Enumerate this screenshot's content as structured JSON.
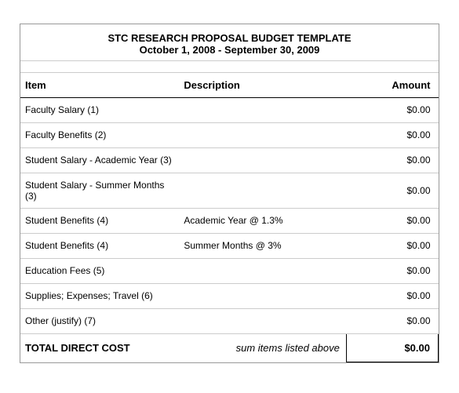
{
  "title": {
    "line1": "STC RESEARCH PROPOSAL BUDGET TEMPLATE",
    "line2": "October 1, 2008 - September 30, 2009"
  },
  "headers": {
    "item": "Item",
    "description": "Description",
    "amount": "Amount"
  },
  "rows": [
    {
      "item": "Faculty Salary (1)",
      "description": "",
      "amount": "$0.00"
    },
    {
      "item": "Faculty Benefits  (2)",
      "description": "",
      "amount": "$0.00"
    },
    {
      "item": "Student Salary - Academic Year  (3)",
      "description": "",
      "amount": "$0.00"
    },
    {
      "item": "Student Salary - Summer Months  (3)",
      "description": "",
      "amount": "$0.00"
    },
    {
      "item": "Student Benefits (4)",
      "description": "Academic Year @ 1.3%",
      "amount": "$0.00"
    },
    {
      "item": "Student Benefits (4)",
      "description": "Summer Months @ 3%",
      "amount": "$0.00"
    },
    {
      "item": "Education Fees (5)",
      "description": "",
      "amount": "$0.00"
    },
    {
      "item": "Supplies; Expenses; Travel (6)",
      "description": "",
      "amount": "$0.00"
    },
    {
      "item": "Other (justify) (7)",
      "description": "",
      "amount": "$0.00"
    }
  ],
  "total": {
    "label": "TOTAL DIRECT COST",
    "description": "sum items listed above",
    "amount": "$0.00"
  },
  "styling": {
    "background_color": "#ffffff",
    "text_color": "#000000",
    "border_color_light": "#cccccc",
    "border_color_dark": "#000000",
    "font_family": "Arial",
    "title_fontsize": 13,
    "body_fontsize": 12
  }
}
